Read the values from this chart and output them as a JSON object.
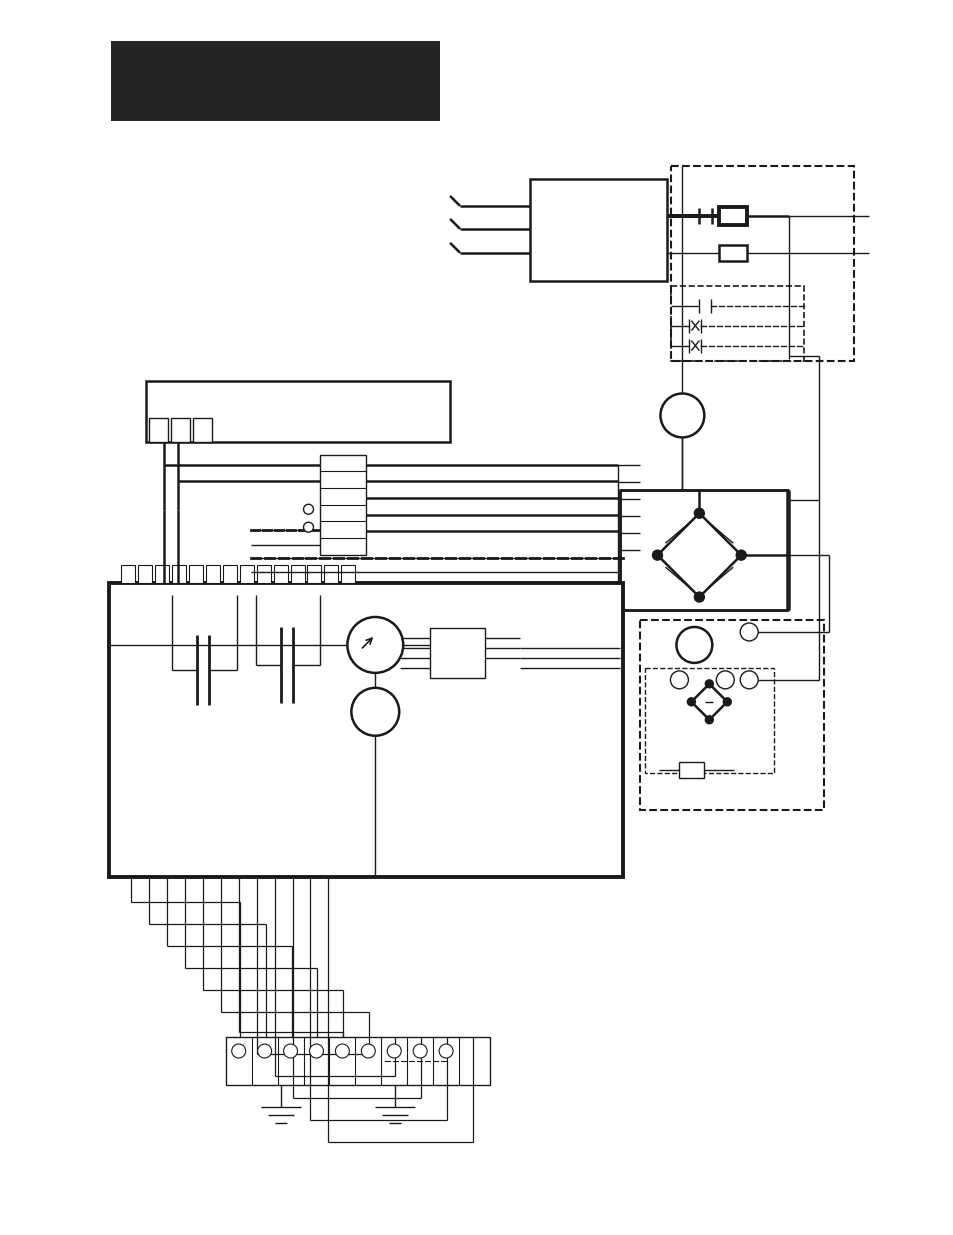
{
  "bg_color": "#ffffff",
  "line_color": "#1a1a1a",
  "header_color": "#252525",
  "fig_width": 9.54,
  "fig_height": 12.35,
  "dpi": 100
}
